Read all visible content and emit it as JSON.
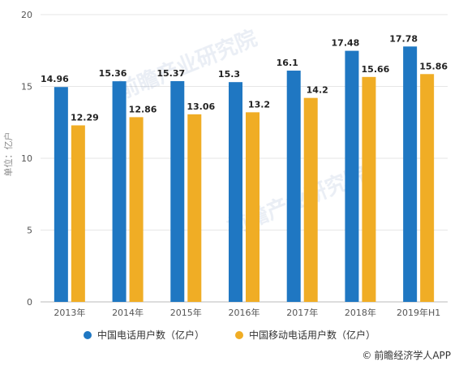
{
  "chart_data": {
    "type": "bar",
    "categories": [
      "2013年",
      "2014年",
      "2015年",
      "2016年",
      "2017年",
      "2018年",
      "2019年H1"
    ],
    "series": [
      {
        "name": "中国电话用户数（亿户）",
        "color": "#1f77c2",
        "values": [
          14.96,
          15.36,
          15.37,
          15.3,
          16.1,
          17.48,
          17.78
        ],
        "labels": [
          "14.96",
          "15.36",
          "15.37",
          "15.3",
          "16.1",
          "17.48",
          "17.78"
        ]
      },
      {
        "name": "中国移动电话用户数（亿户）",
        "color": "#f0ad25",
        "values": [
          12.29,
          12.86,
          13.06,
          13.2,
          14.2,
          15.66,
          15.86
        ],
        "labels": [
          "12.29",
          "12.86",
          "13.06",
          "13.2",
          "14.2",
          "15.66",
          "15.86"
        ]
      }
    ],
    "ylabel": "单位：亿户",
    "ylim": [
      0,
      20
    ],
    "yticks": [
      "0",
      "5",
      "10",
      "15",
      "20"
    ],
    "grid": true,
    "legend_position": "bottom"
  },
  "watermark": "前瞻产业研究院",
  "source": {
    "icon": "copyright-icon",
    "text": "前瞻经济学人APP"
  }
}
